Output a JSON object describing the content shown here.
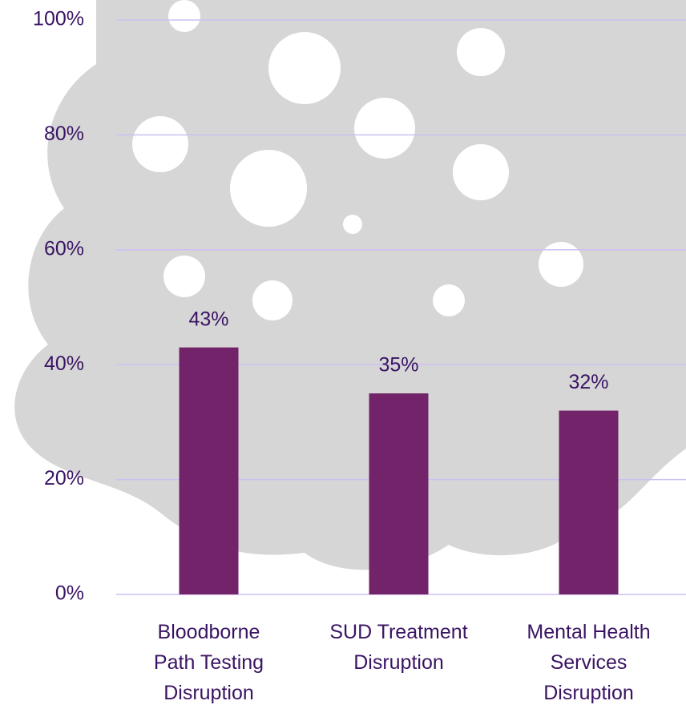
{
  "chart_data": {
    "type": "bar",
    "categories": [
      "Bloodborne Path Testing Disruption",
      "SUD Treatment Disruption",
      "Mental Health Services Disruption"
    ],
    "values": [
      43,
      35,
      32
    ],
    "value_labels": [
      "43%",
      "35%",
      "32%"
    ],
    "color": "#722369",
    "ylim": [
      0,
      100
    ],
    "yticks": [
      {
        "value": 0,
        "label": "0%"
      },
      {
        "value": 20,
        "label": "20%"
      },
      {
        "value": 40,
        "label": "40%"
      },
      {
        "value": 60,
        "label": "60%"
      },
      {
        "value": 80,
        "label": "80%"
      },
      {
        "value": 100,
        "label": "100%"
      }
    ],
    "grid": true
  }
}
